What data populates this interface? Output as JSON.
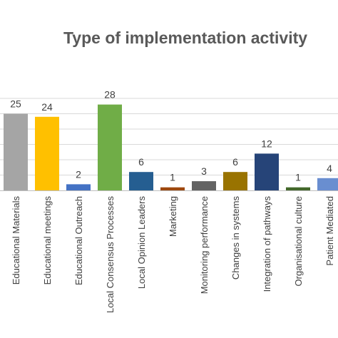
{
  "chart_data": {
    "type": "bar",
    "title": "Type of implementation activity",
    "xlabel": "",
    "ylabel": "",
    "ylim": [
      0,
      30
    ],
    "grid": true,
    "legend": "none",
    "categories": [
      "Educational Materials",
      "Educational meetings",
      "Educational Outreach",
      "Local Consensus Processes",
      "Local Opinion Leaders",
      "Marketing",
      "Monitoring performance",
      "Changes in  systems",
      "Integration of pathways",
      "Organisational culture",
      "Patient Mediated"
    ],
    "values": [
      25,
      24,
      2,
      28,
      6,
      1,
      3,
      6,
      12,
      1,
      4
    ],
    "colors": [
      "#a5a5a5",
      "#ffc000",
      "#4472c4",
      "#70ad47",
      "#255e91",
      "#9e480e",
      "#636363",
      "#997300",
      "#264478",
      "#43682b",
      "#698ed0"
    ]
  }
}
